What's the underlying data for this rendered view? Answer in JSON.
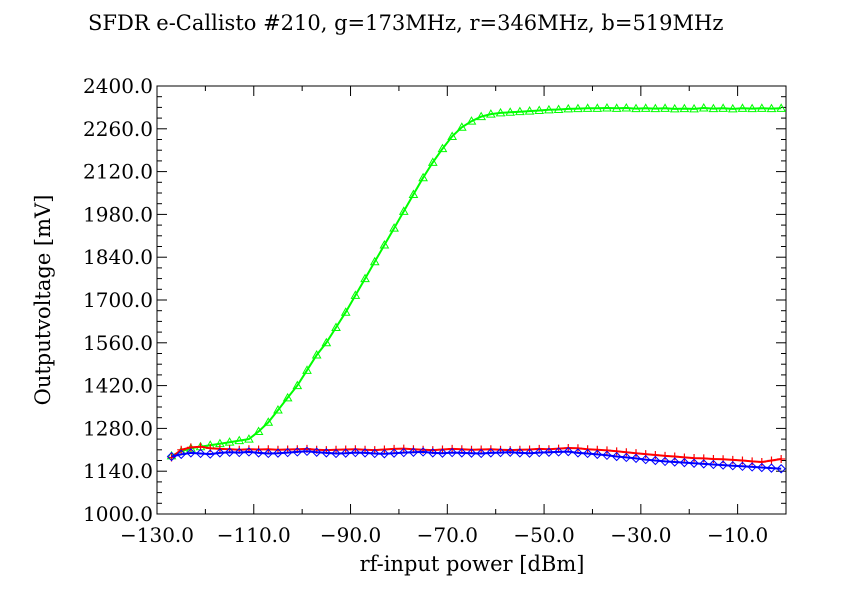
{
  "chart_data": {
    "type": "line",
    "title": "SFDR e-Callisto #210, g=173MHz, r=346MHz, b=519MHz",
    "xlabel": "rf-input power [dBm]",
    "ylabel": "Outputvoltage [mV]",
    "xlim": [
      -130,
      0
    ],
    "ylim": [
      1000,
      2400
    ],
    "x_ticks": [
      "-130.0",
      "-110.0",
      "-90.0",
      "-70.0",
      "-50.0",
      "-30.0",
      "-10.0"
    ],
    "y_ticks": [
      "1000.0",
      "1140.0",
      "1280.0",
      "1420.0",
      "1560.0",
      "1700.0",
      "1840.0",
      "1980.0",
      "2120.0",
      "2260.0",
      "2400.0"
    ],
    "grid": false,
    "series": [
      {
        "color": "#00ff00",
        "marker": "triangle",
        "x": [
          -127,
          -125,
          -123,
          -121,
          -119,
          -117,
          -115,
          -113,
          -111,
          -109,
          -107,
          -105,
          -103,
          -101,
          -99,
          -97,
          -95,
          -93,
          -91,
          -89,
          -87,
          -85,
          -83,
          -81,
          -79,
          -77,
          -75,
          -73,
          -71,
          -69,
          -67,
          -65,
          -63,
          -61,
          -59,
          -57,
          -55,
          -53,
          -51,
          -49,
          -47,
          -45,
          -43,
          -41,
          -39,
          -37,
          -35,
          -33,
          -31,
          -29,
          -27,
          -25,
          -23,
          -21,
          -19,
          -17,
          -15,
          -13,
          -11,
          -9,
          -7,
          -5,
          -3,
          -1
        ],
        "values": [
          1190,
          1205,
          1215,
          1220,
          1225,
          1230,
          1235,
          1240,
          1245,
          1270,
          1300,
          1340,
          1380,
          1420,
          1470,
          1520,
          1560,
          1610,
          1660,
          1715,
          1770,
          1825,
          1880,
          1935,
          1990,
          2045,
          2100,
          2150,
          2195,
          2235,
          2265,
          2285,
          2300,
          2308,
          2312,
          2314,
          2316,
          2318,
          2320,
          2322,
          2323,
          2325,
          2326,
          2327,
          2327,
          2328,
          2327,
          2328,
          2326,
          2327,
          2326,
          2327,
          2325,
          2326,
          2325,
          2328,
          2326,
          2327,
          2325,
          2327,
          2326,
          2327,
          2326,
          2327
        ]
      },
      {
        "color": "#ff0000",
        "marker": "plus",
        "x": [
          -127,
          -125,
          -123,
          -121,
          -119,
          -117,
          -115,
          -113,
          -111,
          -109,
          -107,
          -105,
          -103,
          -101,
          -99,
          -97,
          -95,
          -93,
          -91,
          -89,
          -87,
          -85,
          -83,
          -81,
          -79,
          -77,
          -75,
          -73,
          -71,
          -69,
          -67,
          -65,
          -63,
          -61,
          -59,
          -57,
          -55,
          -53,
          -51,
          -49,
          -47,
          -45,
          -43,
          -41,
          -39,
          -37,
          -35,
          -33,
          -31,
          -29,
          -27,
          -25,
          -23,
          -21,
          -19,
          -17,
          -15,
          -13,
          -11,
          -9,
          -7,
          -5,
          -3,
          -1
        ],
        "values": [
          1185,
          1210,
          1218,
          1220,
          1215,
          1213,
          1212,
          1210,
          1212,
          1211,
          1212,
          1210,
          1211,
          1212,
          1213,
          1210,
          1209,
          1210,
          1211,
          1212,
          1210,
          1209,
          1211,
          1213,
          1214,
          1212,
          1210,
          1209,
          1211,
          1213,
          1212,
          1210,
          1211,
          1212,
          1210,
          1209,
          1210,
          1211,
          1213,
          1212,
          1214,
          1216,
          1215,
          1212,
          1210,
          1208,
          1205,
          1202,
          1199,
          1196,
          1193,
          1190,
          1188,
          1185,
          1183,
          1182,
          1180,
          1179,
          1177,
          1175,
          1172,
          1170,
          1175,
          1180
        ]
      },
      {
        "color": "#0000ff",
        "marker": "diamond",
        "x": [
          -127,
          -125,
          -123,
          -121,
          -119,
          -117,
          -115,
          -113,
          -111,
          -109,
          -107,
          -105,
          -103,
          -101,
          -99,
          -97,
          -95,
          -93,
          -91,
          -89,
          -87,
          -85,
          -83,
          -81,
          -79,
          -77,
          -75,
          -73,
          -71,
          -69,
          -67,
          -65,
          -63,
          -61,
          -59,
          -57,
          -55,
          -53,
          -51,
          -49,
          -47,
          -45,
          -43,
          -41,
          -39,
          -37,
          -35,
          -33,
          -31,
          -29,
          -27,
          -25,
          -23,
          -21,
          -19,
          -17,
          -15,
          -13,
          -11,
          -9,
          -7,
          -5,
          -3,
          -1
        ],
        "values": [
          1188,
          1195,
          1200,
          1198,
          1196,
          1200,
          1202,
          1201,
          1203,
          1200,
          1198,
          1199,
          1201,
          1203,
          1205,
          1202,
          1200,
          1198,
          1199,
          1201,
          1200,
          1198,
          1197,
          1199,
          1201,
          1202,
          1203,
          1200,
          1199,
          1201,
          1200,
          1199,
          1198,
          1200,
          1201,
          1202,
          1200,
          1199,
          1201,
          1202,
          1203,
          1204,
          1200,
          1198,
          1195,
          1192,
          1188,
          1185,
          1182,
          1178,
          1175,
          1172,
          1170,
          1168,
          1166,
          1164,
          1162,
          1160,
          1158,
          1156,
          1154,
          1152,
          1150,
          1148
        ]
      }
    ]
  }
}
